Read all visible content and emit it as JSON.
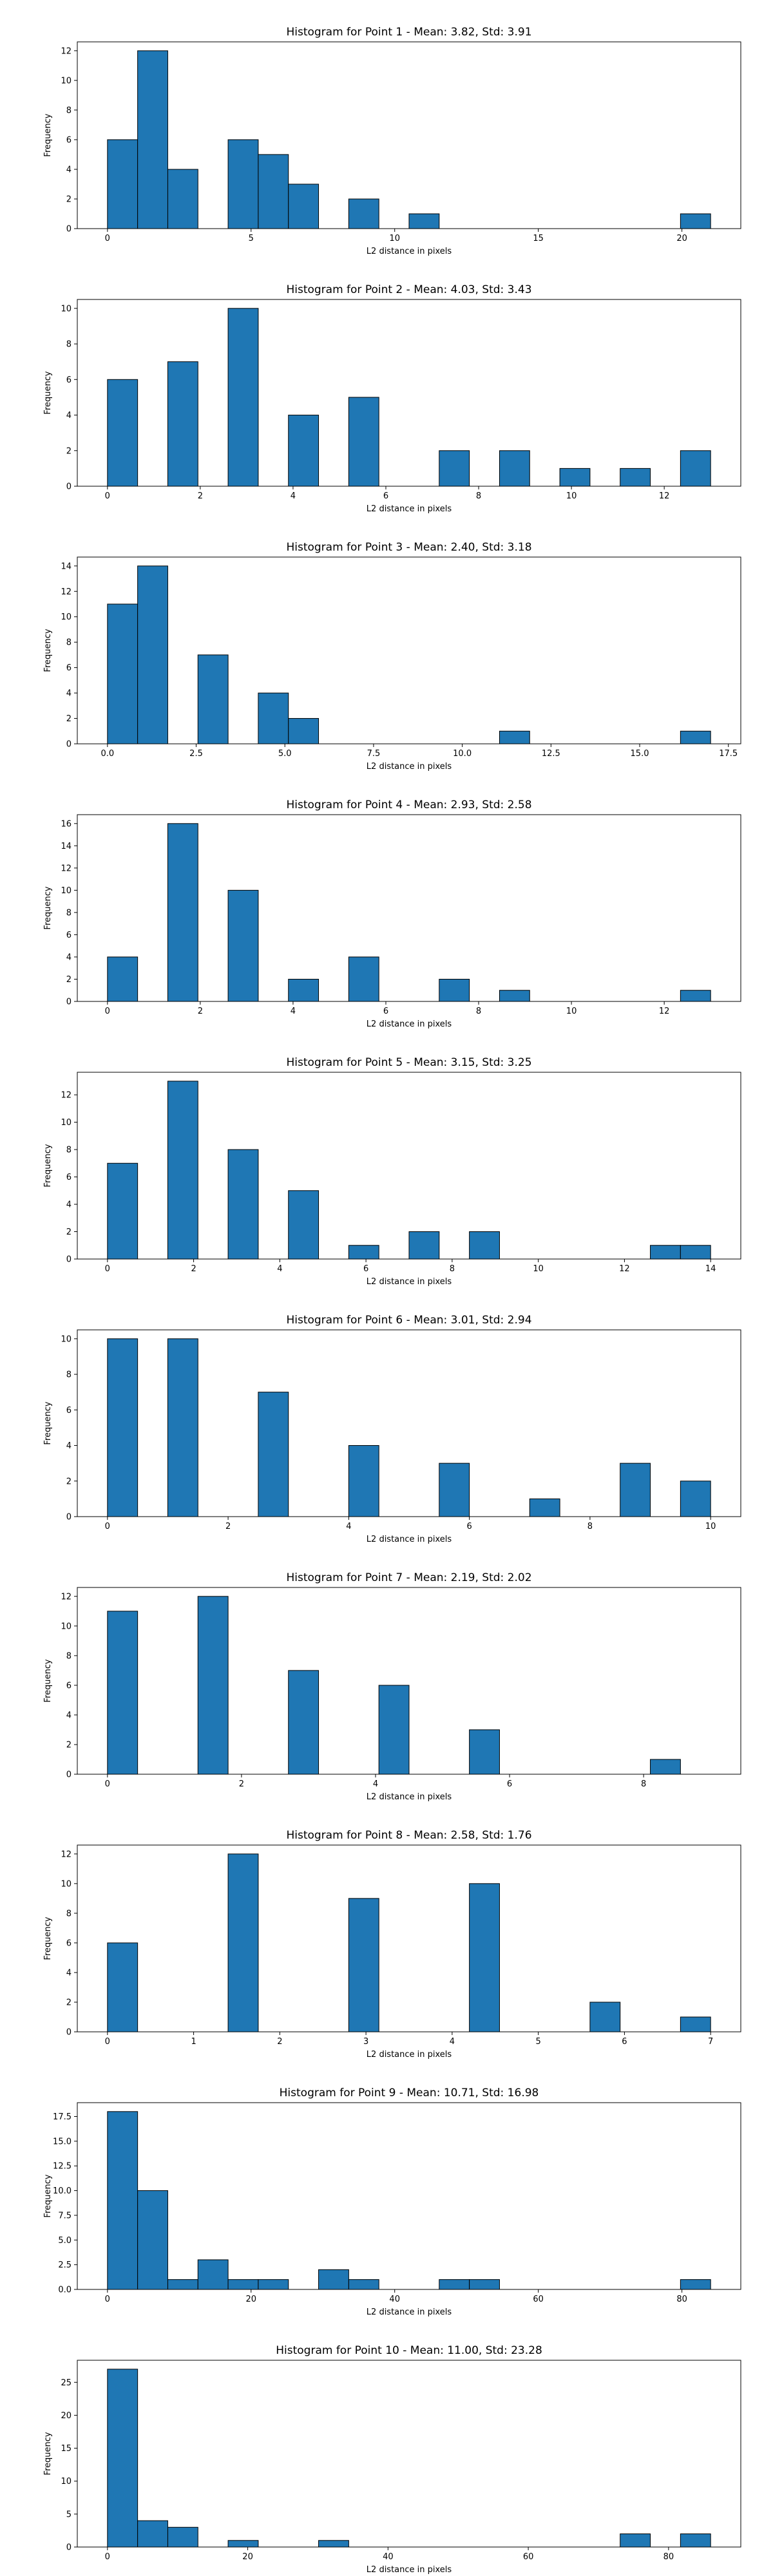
{
  "chart_data": [
    {
      "type": "bar",
      "title": "Histogram for Point 1 - Mean: 3.82, Std: 3.91",
      "xlabel": "L2 distance in pixels",
      "ylabel": "Frequency",
      "xlim": [
        -1.05,
        22.05
      ],
      "ylim": [
        0,
        12.6
      ],
      "bin_width": 1.05,
      "bins": [
        {
          "x": 0.0,
          "count": 6
        },
        {
          "x": 1.05,
          "count": 12
        },
        {
          "x": 2.1,
          "count": 4
        },
        {
          "x": 4.2,
          "count": 6
        },
        {
          "x": 5.25,
          "count": 5
        },
        {
          "x": 6.3,
          "count": 3
        },
        {
          "x": 8.4,
          "count": 2
        },
        {
          "x": 10.5,
          "count": 1
        },
        {
          "x": 19.95,
          "count": 1
        }
      ],
      "xticks": [
        {
          "v": 0,
          "label": "0"
        },
        {
          "v": 5,
          "label": "5"
        },
        {
          "v": 10,
          "label": "10"
        },
        {
          "v": 15,
          "label": "15"
        },
        {
          "v": 20,
          "label": "20"
        }
      ],
      "yticks": [
        {
          "v": 0,
          "label": "0"
        },
        {
          "v": 2,
          "label": "2"
        },
        {
          "v": 4,
          "label": "4"
        },
        {
          "v": 6,
          "label": "6"
        },
        {
          "v": 8,
          "label": "8"
        },
        {
          "v": 10,
          "label": "10"
        },
        {
          "v": 12,
          "label": "12"
        }
      ],
      "bar_color": "#1f77b4"
    },
    {
      "type": "bar",
      "title": "Histogram for Point 2 - Mean: 4.03, Std: 3.43",
      "xlabel": "L2 distance in pixels",
      "ylabel": "Frequency",
      "xlim": [
        -0.65,
        13.65
      ],
      "ylim": [
        0,
        10.5
      ],
      "bin_width": 0.65,
      "bins": [
        {
          "x": 0.0,
          "count": 6
        },
        {
          "x": 1.3,
          "count": 7
        },
        {
          "x": 2.6,
          "count": 10
        },
        {
          "x": 3.9,
          "count": 4
        },
        {
          "x": 5.2,
          "count": 5
        },
        {
          "x": 7.15,
          "count": 2
        },
        {
          "x": 8.45,
          "count": 2
        },
        {
          "x": 9.75,
          "count": 1
        },
        {
          "x": 11.05,
          "count": 1
        },
        {
          "x": 12.35,
          "count": 2
        }
      ],
      "xticks": [
        {
          "v": 0,
          "label": "0"
        },
        {
          "v": 2,
          "label": "2"
        },
        {
          "v": 4,
          "label": "4"
        },
        {
          "v": 6,
          "label": "6"
        },
        {
          "v": 8,
          "label": "8"
        },
        {
          "v": 10,
          "label": "10"
        },
        {
          "v": 12,
          "label": "12"
        }
      ],
      "yticks": [
        {
          "v": 0,
          "label": "0"
        },
        {
          "v": 2,
          "label": "2"
        },
        {
          "v": 4,
          "label": "4"
        },
        {
          "v": 6,
          "label": "6"
        },
        {
          "v": 8,
          "label": "8"
        },
        {
          "v": 10,
          "label": "10"
        }
      ],
      "bar_color": "#1f77b4"
    },
    {
      "type": "bar",
      "title": "Histogram for Point 3 - Mean: 2.40, Std: 3.18",
      "xlabel": "L2 distance in pixels",
      "ylabel": "Frequency",
      "xlim": [
        -0.85,
        17.85
      ],
      "ylim": [
        0,
        14.7
      ],
      "bin_width": 0.85,
      "bins": [
        {
          "x": 0.0,
          "count": 11
        },
        {
          "x": 0.85,
          "count": 14
        },
        {
          "x": 2.55,
          "count": 7
        },
        {
          "x": 4.25,
          "count": 4
        },
        {
          "x": 5.1,
          "count": 2
        },
        {
          "x": 11.05,
          "count": 1
        },
        {
          "x": 16.15,
          "count": 1
        }
      ],
      "xticks": [
        {
          "v": 0,
          "label": "0.0"
        },
        {
          "v": 2.5,
          "label": "2.5"
        },
        {
          "v": 5,
          "label": "5.0"
        },
        {
          "v": 7.5,
          "label": "7.5"
        },
        {
          "v": 10,
          "label": "10.0"
        },
        {
          "v": 12.5,
          "label": "12.5"
        },
        {
          "v": 15,
          "label": "15.0"
        },
        {
          "v": 17.5,
          "label": "17.5"
        }
      ],
      "yticks": [
        {
          "v": 0,
          "label": "0"
        },
        {
          "v": 2,
          "label": "2"
        },
        {
          "v": 4,
          "label": "4"
        },
        {
          "v": 6,
          "label": "6"
        },
        {
          "v": 8,
          "label": "8"
        },
        {
          "v": 10,
          "label": "10"
        },
        {
          "v": 12,
          "label": "12"
        },
        {
          "v": 14,
          "label": "14"
        }
      ],
      "bar_color": "#1f77b4"
    },
    {
      "type": "bar",
      "title": "Histogram for Point 4 - Mean: 2.93, Std: 2.58",
      "xlabel": "L2 distance in pixels",
      "ylabel": "Frequency",
      "xlim": [
        -0.65,
        13.65
      ],
      "ylim": [
        0,
        16.8
      ],
      "bin_width": 0.65,
      "bins": [
        {
          "x": 0.0,
          "count": 4
        },
        {
          "x": 1.3,
          "count": 16
        },
        {
          "x": 2.6,
          "count": 10
        },
        {
          "x": 3.9,
          "count": 2
        },
        {
          "x": 5.2,
          "count": 4
        },
        {
          "x": 7.15,
          "count": 2
        },
        {
          "x": 8.45,
          "count": 1
        },
        {
          "x": 12.35,
          "count": 1
        }
      ],
      "xticks": [
        {
          "v": 0,
          "label": "0"
        },
        {
          "v": 2,
          "label": "2"
        },
        {
          "v": 4,
          "label": "4"
        },
        {
          "v": 6,
          "label": "6"
        },
        {
          "v": 8,
          "label": "8"
        },
        {
          "v": 10,
          "label": "10"
        },
        {
          "v": 12,
          "label": "12"
        }
      ],
      "yticks": [
        {
          "v": 0,
          "label": "0"
        },
        {
          "v": 2,
          "label": "2"
        },
        {
          "v": 4,
          "label": "4"
        },
        {
          "v": 6,
          "label": "6"
        },
        {
          "v": 8,
          "label": "8"
        },
        {
          "v": 10,
          "label": "10"
        },
        {
          "v": 12,
          "label": "12"
        },
        {
          "v": 14,
          "label": "14"
        },
        {
          "v": 16,
          "label": "16"
        }
      ],
      "bar_color": "#1f77b4"
    },
    {
      "type": "bar",
      "title": "Histogram for Point 5 - Mean: 3.15, Std: 3.25",
      "xlabel": "L2 distance in pixels",
      "ylabel": "Frequency",
      "xlim": [
        -0.7,
        14.7
      ],
      "ylim": [
        0,
        13.65
      ],
      "bin_width": 0.7,
      "bins": [
        {
          "x": 0.0,
          "count": 7
        },
        {
          "x": 1.4,
          "count": 13
        },
        {
          "x": 2.8,
          "count": 8
        },
        {
          "x": 4.2,
          "count": 5
        },
        {
          "x": 5.6,
          "count": 1
        },
        {
          "x": 7.0,
          "count": 2
        },
        {
          "x": 8.4,
          "count": 2
        },
        {
          "x": 12.6,
          "count": 1
        },
        {
          "x": 13.3,
          "count": 1
        }
      ],
      "xticks": [
        {
          "v": 0,
          "label": "0"
        },
        {
          "v": 2,
          "label": "2"
        },
        {
          "v": 4,
          "label": "4"
        },
        {
          "v": 6,
          "label": "6"
        },
        {
          "v": 8,
          "label": "8"
        },
        {
          "v": 10,
          "label": "10"
        },
        {
          "v": 12,
          "label": "12"
        },
        {
          "v": 14,
          "label": "14"
        }
      ],
      "yticks": [
        {
          "v": 0,
          "label": "0"
        },
        {
          "v": 2,
          "label": "2"
        },
        {
          "v": 4,
          "label": "4"
        },
        {
          "v": 6,
          "label": "6"
        },
        {
          "v": 8,
          "label": "8"
        },
        {
          "v": 10,
          "label": "10"
        },
        {
          "v": 12,
          "label": "12"
        }
      ],
      "bar_color": "#1f77b4"
    },
    {
      "type": "bar",
      "title": "Histogram for Point 6 - Mean: 3.01, Std: 2.94",
      "xlabel": "L2 distance in pixels",
      "ylabel": "Frequency",
      "xlim": [
        -0.5,
        10.5
      ],
      "ylim": [
        0,
        10.5
      ],
      "bin_width": 0.5,
      "bins": [
        {
          "x": 0.0,
          "count": 10
        },
        {
          "x": 1.0,
          "count": 10
        },
        {
          "x": 2.5,
          "count": 7
        },
        {
          "x": 4.0,
          "count": 4
        },
        {
          "x": 5.5,
          "count": 3
        },
        {
          "x": 7.0,
          "count": 1
        },
        {
          "x": 8.5,
          "count": 3
        },
        {
          "x": 9.5,
          "count": 2
        }
      ],
      "xticks": [
        {
          "v": 0,
          "label": "0"
        },
        {
          "v": 2,
          "label": "2"
        },
        {
          "v": 4,
          "label": "4"
        },
        {
          "v": 6,
          "label": "6"
        },
        {
          "v": 8,
          "label": "8"
        },
        {
          "v": 10,
          "label": "10"
        }
      ],
      "yticks": [
        {
          "v": 0,
          "label": "0"
        },
        {
          "v": 2,
          "label": "2"
        },
        {
          "v": 4,
          "label": "4"
        },
        {
          "v": 6,
          "label": "6"
        },
        {
          "v": 8,
          "label": "8"
        },
        {
          "v": 10,
          "label": "10"
        }
      ],
      "bar_color": "#1f77b4"
    },
    {
      "type": "bar",
      "title": "Histogram for Point 7 - Mean: 2.19, Std: 2.02",
      "xlabel": "L2 distance in pixels",
      "ylabel": "Frequency",
      "xlim": [
        -0.45,
        9.45
      ],
      "ylim": [
        0,
        12.6
      ],
      "bin_width": 0.45,
      "bins": [
        {
          "x": 0.0,
          "count": 11
        },
        {
          "x": 1.35,
          "count": 12
        },
        {
          "x": 2.7,
          "count": 7
        },
        {
          "x": 4.05,
          "count": 6
        },
        {
          "x": 5.4,
          "count": 3
        },
        {
          "x": 8.1,
          "count": 1
        }
      ],
      "xticks": [
        {
          "v": 0,
          "label": "0"
        },
        {
          "v": 2,
          "label": "2"
        },
        {
          "v": 4,
          "label": "4"
        },
        {
          "v": 6,
          "label": "6"
        },
        {
          "v": 8,
          "label": "8"
        }
      ],
      "yticks": [
        {
          "v": 0,
          "label": "0"
        },
        {
          "v": 2,
          "label": "2"
        },
        {
          "v": 4,
          "label": "4"
        },
        {
          "v": 6,
          "label": "6"
        },
        {
          "v": 8,
          "label": "8"
        },
        {
          "v": 10,
          "label": "10"
        },
        {
          "v": 12,
          "label": "12"
        }
      ],
      "bar_color": "#1f77b4"
    },
    {
      "type": "bar",
      "title": "Histogram for Point 8 - Mean: 2.58, Std: 1.76",
      "xlabel": "L2 distance in pixels",
      "ylabel": "Frequency",
      "xlim": [
        -0.35,
        7.35
      ],
      "ylim": [
        0,
        12.6
      ],
      "bin_width": 0.35,
      "bins": [
        {
          "x": 0.0,
          "count": 6
        },
        {
          "x": 1.4,
          "count": 12
        },
        {
          "x": 2.8,
          "count": 9
        },
        {
          "x": 4.2,
          "count": 10
        },
        {
          "x": 5.6,
          "count": 2
        },
        {
          "x": 6.65,
          "count": 1
        }
      ],
      "xticks": [
        {
          "v": 0,
          "label": "0"
        },
        {
          "v": 1,
          "label": "1"
        },
        {
          "v": 2,
          "label": "2"
        },
        {
          "v": 3,
          "label": "3"
        },
        {
          "v": 4,
          "label": "4"
        },
        {
          "v": 5,
          "label": "5"
        },
        {
          "v": 6,
          "label": "6"
        },
        {
          "v": 7,
          "label": "7"
        }
      ],
      "yticks": [
        {
          "v": 0,
          "label": "0"
        },
        {
          "v": 2,
          "label": "2"
        },
        {
          "v": 4,
          "label": "4"
        },
        {
          "v": 6,
          "label": "6"
        },
        {
          "v": 8,
          "label": "8"
        },
        {
          "v": 10,
          "label": "10"
        },
        {
          "v": 12,
          "label": "12"
        }
      ],
      "bar_color": "#1f77b4"
    },
    {
      "type": "bar",
      "title": "Histogram for Point 9 - Mean: 10.71, Std: 16.98",
      "xlabel": "L2 distance in pixels",
      "ylabel": "Frequency",
      "xlim": [
        -4.2,
        88.2
      ],
      "ylim": [
        0,
        18.9
      ],
      "bin_width": 4.2,
      "bins": [
        {
          "x": 0.0,
          "count": 18
        },
        {
          "x": 4.2,
          "count": 10
        },
        {
          "x": 8.4,
          "count": 1
        },
        {
          "x": 12.6,
          "count": 3
        },
        {
          "x": 16.8,
          "count": 1
        },
        {
          "x": 21.0,
          "count": 1
        },
        {
          "x": 29.4,
          "count": 2
        },
        {
          "x": 33.6,
          "count": 1
        },
        {
          "x": 46.2,
          "count": 1
        },
        {
          "x": 50.4,
          "count": 1
        },
        {
          "x": 79.8,
          "count": 1
        }
      ],
      "xticks": [
        {
          "v": 0,
          "label": "0"
        },
        {
          "v": 20,
          "label": "20"
        },
        {
          "v": 40,
          "label": "40"
        },
        {
          "v": 60,
          "label": "60"
        },
        {
          "v": 80,
          "label": "80"
        }
      ],
      "yticks": [
        {
          "v": 0,
          "label": "0.0"
        },
        {
          "v": 2.5,
          "label": "2.5"
        },
        {
          "v": 5,
          "label": "5.0"
        },
        {
          "v": 7.5,
          "label": "7.5"
        },
        {
          "v": 10,
          "label": "10.0"
        },
        {
          "v": 12.5,
          "label": "12.5"
        },
        {
          "v": 15,
          "label": "15.0"
        },
        {
          "v": 17.5,
          "label": "17.5"
        }
      ],
      "bar_color": "#1f77b4"
    },
    {
      "type": "bar",
      "title": "Histogram for Point 10 - Mean: 11.00, Std: 23.28",
      "xlabel": "L2 distance in pixels",
      "ylabel": "Frequency",
      "xlim": [
        -4.3,
        90.3
      ],
      "ylim": [
        0,
        28.35
      ],
      "bin_width": 4.3,
      "bins": [
        {
          "x": 0.0,
          "count": 27
        },
        {
          "x": 4.3,
          "count": 4
        },
        {
          "x": 8.6,
          "count": 3
        },
        {
          "x": 17.2,
          "count": 1
        },
        {
          "x": 30.1,
          "count": 1
        },
        {
          "x": 73.1,
          "count": 2
        },
        {
          "x": 81.7,
          "count": 2
        }
      ],
      "xticks": [
        {
          "v": 0,
          "label": "0"
        },
        {
          "v": 20,
          "label": "20"
        },
        {
          "v": 40,
          "label": "40"
        },
        {
          "v": 60,
          "label": "60"
        },
        {
          "v": 80,
          "label": "80"
        }
      ],
      "yticks": [
        {
          "v": 0,
          "label": "0"
        },
        {
          "v": 5,
          "label": "5"
        },
        {
          "v": 10,
          "label": "10"
        },
        {
          "v": 15,
          "label": "15"
        },
        {
          "v": 20,
          "label": "20"
        },
        {
          "v": 25,
          "label": "25"
        }
      ],
      "bar_color": "#1f77b4"
    }
  ]
}
